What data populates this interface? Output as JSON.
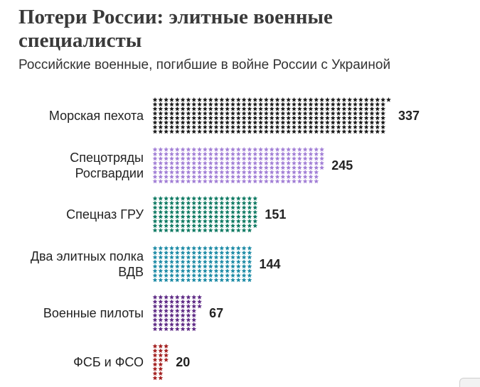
{
  "header": {
    "title": "Потери России: элитные военные специалисты",
    "subtitle": "Российские военные, погибшие в войне России с Украиной"
  },
  "chart_data": {
    "type": "bar",
    "title": "Потери России: элитные военные специалисты",
    "subtitle": "Российские военные, погибшие в войне России с Украиной",
    "categories": [
      [
        "Морская пехота"
      ],
      [
        "Спецотряды",
        "Росгвардии"
      ],
      [
        "Спецназ ГРУ"
      ],
      [
        "Два элитных полка",
        "ВДВ"
      ],
      [
        "Военные пилоты"
      ],
      [
        "ФСБ и ФСО"
      ]
    ],
    "values": [
      337,
      245,
      151,
      144,
      67,
      20
    ],
    "colors": [
      "#1a1a1a",
      "#a27fd6",
      "#0f7a63",
      "#1d8ba6",
      "#5e2a85",
      "#a31f1f"
    ],
    "marker": "star",
    "orientation": "horizontal",
    "legend": "none",
    "grid": false
  }
}
